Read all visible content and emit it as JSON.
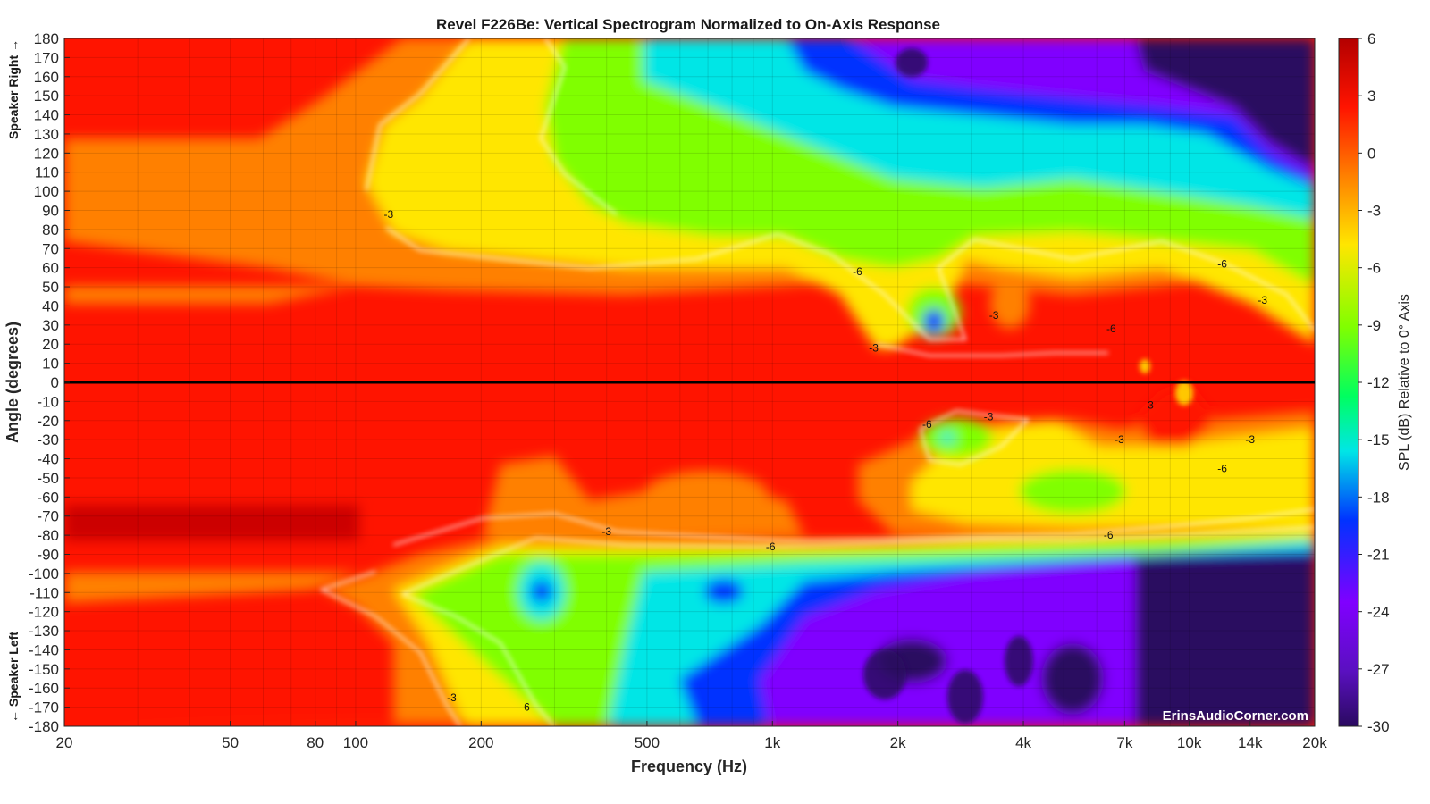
{
  "chart_data": {
    "type": "heatmap",
    "title": "Revel F226Be: Vertical Spectrogram Normalized to On-Axis Response",
    "xlabel": "Frequency (Hz)",
    "ylabel": "Angle (degrees)",
    "x_scale": "log",
    "xlim": [
      20,
      20000
    ],
    "ylim": [
      -180,
      180
    ],
    "x_ticks": [
      {
        "value": 20,
        "label": "20"
      },
      {
        "value": 50,
        "label": "50"
      },
      {
        "value": 80,
        "label": "80"
      },
      {
        "value": 100,
        "label": "100"
      },
      {
        "value": 200,
        "label": "200"
      },
      {
        "value": 500,
        "label": "500"
      },
      {
        "value": 1000,
        "label": "1k"
      },
      {
        "value": 2000,
        "label": "2k"
      },
      {
        "value": 4000,
        "label": "4k"
      },
      {
        "value": 7000,
        "label": "7k"
      },
      {
        "value": 10000,
        "label": "10k"
      },
      {
        "value": 14000,
        "label": "14k"
      },
      {
        "value": 20000,
        "label": "20k"
      }
    ],
    "y_ticks": [
      180,
      170,
      160,
      150,
      140,
      130,
      120,
      110,
      100,
      90,
      80,
      70,
      60,
      50,
      40,
      30,
      20,
      10,
      0,
      -10,
      -20,
      -30,
      -40,
      -50,
      -60,
      -70,
      -80,
      -90,
      -100,
      -110,
      -120,
      -130,
      -140,
      -150,
      -160,
      -170,
      -180
    ],
    "y_side_labels": {
      "top": "Speaker Right →",
      "bottom": "← Speaker Left"
    },
    "grid": true,
    "reference_line_angle": 0,
    "colorbar": {
      "label": "SPL (dB) Relative to 0° Axis",
      "range": [
        -30,
        6
      ],
      "ticks": [
        6,
        3,
        0,
        -3,
        -6,
        -9,
        -12,
        -15,
        -18,
        -21,
        -24,
        -27,
        -30
      ],
      "colors": [
        "#b30000",
        "#ff1400",
        "#ff8000",
        "#ffe600",
        "#80ff00",
        "#00e6e6",
        "#0033ff",
        "#8000ff",
        "#2a0a60"
      ]
    },
    "contour_levels": [
      -3,
      -6
    ],
    "contour_labels": [
      {
        "text": "-3",
        "freq": 120,
        "angle": 88
      },
      {
        "text": "-6",
        "freq": 1600,
        "angle": 58
      },
      {
        "text": "-3",
        "freq": 1750,
        "angle": 18
      },
      {
        "text": "-3",
        "freq": 3400,
        "angle": 35
      },
      {
        "text": "-6",
        "freq": 6500,
        "angle": 28
      },
      {
        "text": "-6",
        "freq": 12000,
        "angle": 62
      },
      {
        "text": "-3",
        "freq": 15000,
        "angle": 43
      },
      {
        "text": "-6",
        "freq": 2350,
        "angle": -22
      },
      {
        "text": "-3",
        "freq": 3300,
        "angle": -18
      },
      {
        "text": "-3",
        "freq": 8000,
        "angle": -12
      },
      {
        "text": "-3",
        "freq": 6800,
        "angle": -30
      },
      {
        "text": "-3",
        "freq": 14000,
        "angle": -30
      },
      {
        "text": "-6",
        "freq": 12000,
        "angle": -45
      },
      {
        "text": "-3",
        "freq": 400,
        "angle": -78
      },
      {
        "text": "-6",
        "freq": 990,
        "angle": -86
      },
      {
        "text": "-6",
        "freq": 6400,
        "angle": -80
      },
      {
        "text": "-3",
        "freq": 170,
        "angle": -165
      },
      {
        "text": "-6",
        "freq": 255,
        "angle": -170
      }
    ],
    "watermark": "ErinsAudioCorner.com"
  }
}
